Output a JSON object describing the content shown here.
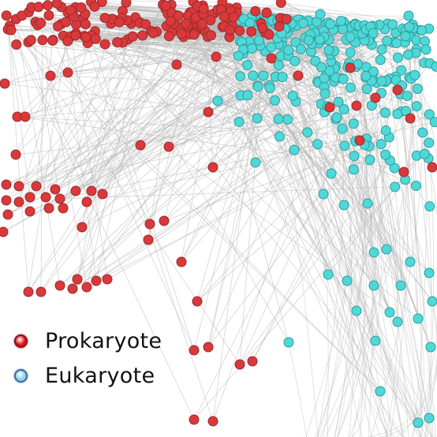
{
  "legend": {
    "items": [
      {
        "label": "Prokaryote",
        "color": "#e51219",
        "stroke": "#8a0f10"
      },
      {
        "label": "Eukaryote",
        "color": "#8fd0e6",
        "stroke": "#3a6aa3"
      }
    ]
  },
  "network": {
    "edge_color": "#b8b8b8",
    "prokaryote_color": "#d9393b",
    "prokaryote_stroke": "#9c2a2a",
    "eukaryote_color": "#4fd8d8",
    "eukaryote_stroke": "#2f9c9c"
  }
}
